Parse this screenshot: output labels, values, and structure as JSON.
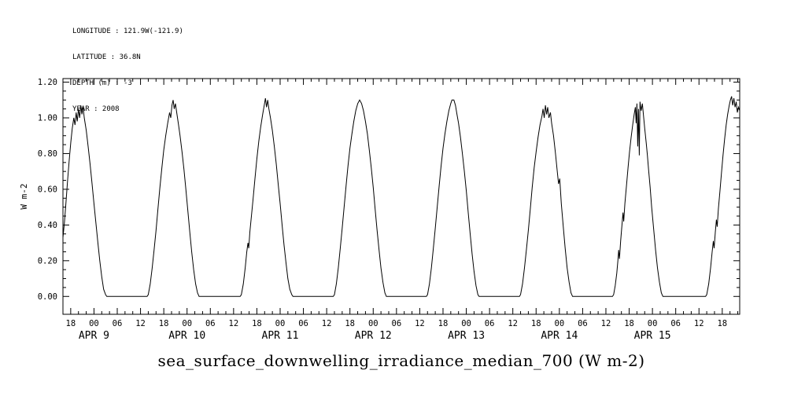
{
  "header": {
    "lines": [
      "LONGITUDE : 121.9W(-121.9)",
      "LATITUDE : 36.8N",
      "DEPTH (m) : -3",
      "YEAR : 2008"
    ]
  },
  "title": "sea_surface_downwelling_irradiance_median_700 (W m-2)",
  "colors": {
    "background": "#ffffff",
    "line": "#000000",
    "text": "#000000"
  },
  "chart_data": {
    "type": "line",
    "title": "sea_surface_downwelling_irradiance_median_700 (W m-2)",
    "ylabel": "W m-2",
    "grid": false,
    "legend": "none",
    "xlim": [
      16,
      190.5
    ],
    "ylim": [
      -0.1,
      1.22
    ],
    "x_minor_step": 2,
    "y_minor_step": 0.05,
    "y_ticks": [
      [
        0,
        "0.00"
      ],
      [
        0.2,
        "0.20"
      ],
      [
        0.4,
        "0.40"
      ],
      [
        0.6,
        "0.60"
      ],
      [
        0.8,
        "0.80"
      ],
      [
        1,
        "1.00"
      ],
      [
        1.2,
        "1.20"
      ]
    ],
    "x_ticks": [
      [
        18,
        "18"
      ],
      [
        24,
        "00"
      ],
      [
        30,
        "06"
      ],
      [
        36,
        "12"
      ],
      [
        42,
        "18"
      ],
      [
        48,
        "00"
      ],
      [
        54,
        "06"
      ],
      [
        60,
        "12"
      ],
      [
        66,
        "18"
      ],
      [
        72,
        "00"
      ],
      [
        78,
        "06"
      ],
      [
        84,
        "12"
      ],
      [
        90,
        "18"
      ],
      [
        96,
        "00"
      ],
      [
        102,
        "06"
      ],
      [
        108,
        "12"
      ],
      [
        114,
        "18"
      ],
      [
        120,
        "00"
      ],
      [
        126,
        "06"
      ],
      [
        132,
        "12"
      ],
      [
        138,
        "18"
      ],
      [
        144,
        "00"
      ],
      [
        150,
        "06"
      ],
      [
        156,
        "12"
      ],
      [
        162,
        "18"
      ],
      [
        168,
        "00"
      ],
      [
        174,
        "06"
      ],
      [
        180,
        "12"
      ],
      [
        186,
        "18"
      ]
    ],
    "date_labels": [
      [
        24,
        "APR 9"
      ],
      [
        48,
        "APR 10"
      ],
      [
        72,
        "APR 11"
      ],
      [
        96,
        "APR 12"
      ],
      [
        120,
        "APR 13"
      ],
      [
        144,
        "APR 14"
      ],
      [
        168,
        "APR 15"
      ]
    ],
    "points": [
      [
        16,
        0.33
      ],
      [
        16.4,
        0.42
      ],
      [
        16.8,
        0.53
      ],
      [
        17.2,
        0.65
      ],
      [
        17.6,
        0.76
      ],
      [
        18,
        0.86
      ],
      [
        18.4,
        0.94
      ],
      [
        18.8,
        1
      ],
      [
        19.1,
        0.96
      ],
      [
        19.4,
        1.03
      ],
      [
        19.7,
        0.98
      ],
      [
        20,
        1.05
      ],
      [
        20.3,
        1
      ],
      [
        20.6,
        1.07
      ],
      [
        20.9,
        1.02
      ],
      [
        21.2,
        1.06
      ],
      [
        21.5,
        1
      ],
      [
        22,
        0.93
      ],
      [
        22.5,
        0.84
      ],
      [
        23,
        0.74
      ],
      [
        23.5,
        0.63
      ],
      [
        24,
        0.52
      ],
      [
        24.5,
        0.41
      ],
      [
        25,
        0.3
      ],
      [
        25.5,
        0.2
      ],
      [
        26,
        0.11
      ],
      [
        26.5,
        0.04
      ],
      [
        27,
        0.01
      ],
      [
        27.3,
        0
      ],
      [
        37.7,
        0
      ],
      [
        38,
        0.01
      ],
      [
        38.5,
        0.07
      ],
      [
        39,
        0.16
      ],
      [
        39.5,
        0.26
      ],
      [
        40,
        0.37
      ],
      [
        40.5,
        0.49
      ],
      [
        41,
        0.61
      ],
      [
        41.5,
        0.72
      ],
      [
        42,
        0.82
      ],
      [
        42.5,
        0.9
      ],
      [
        43,
        0.97
      ],
      [
        43.5,
        1.03
      ],
      [
        43.8,
        1
      ],
      [
        44.1,
        1.07
      ],
      [
        44.4,
        1.1
      ],
      [
        44.7,
        1.05
      ],
      [
        45,
        1.08
      ],
      [
        45.4,
        1.02
      ],
      [
        45.8,
        0.96
      ],
      [
        46.2,
        0.9
      ],
      [
        46.7,
        0.81
      ],
      [
        47.2,
        0.71
      ],
      [
        47.7,
        0.6
      ],
      [
        48.2,
        0.48
      ],
      [
        48.7,
        0.36
      ],
      [
        49.2,
        0.25
      ],
      [
        49.7,
        0.15
      ],
      [
        50.2,
        0.07
      ],
      [
        50.7,
        0.02
      ],
      [
        51.1,
        0
      ],
      [
        61.7,
        0
      ],
      [
        62,
        0.01
      ],
      [
        62.5,
        0.07
      ],
      [
        63,
        0.16
      ],
      [
        63.4,
        0.25
      ],
      [
        63.7,
        0.3
      ],
      [
        63.9,
        0.27
      ],
      [
        64.2,
        0.36
      ],
      [
        64.6,
        0.45
      ],
      [
        65,
        0.54
      ],
      [
        65.5,
        0.66
      ],
      [
        66,
        0.77
      ],
      [
        66.5,
        0.87
      ],
      [
        67,
        0.95
      ],
      [
        67.5,
        1.02
      ],
      [
        67.9,
        1.07
      ],
      [
        68.2,
        1.11
      ],
      [
        68.5,
        1.06
      ],
      [
        68.8,
        1.1
      ],
      [
        69.1,
        1.05
      ],
      [
        69.5,
        1
      ],
      [
        70,
        0.93
      ],
      [
        70.5,
        0.84
      ],
      [
        71,
        0.74
      ],
      [
        71.5,
        0.63
      ],
      [
        72,
        0.52
      ],
      [
        72.5,
        0.4
      ],
      [
        73,
        0.29
      ],
      [
        73.5,
        0.19
      ],
      [
        74,
        0.1
      ],
      [
        74.5,
        0.04
      ],
      [
        75,
        0.01
      ],
      [
        75.3,
        0
      ],
      [
        85.7,
        0
      ],
      [
        86,
        0.01
      ],
      [
        86.5,
        0.07
      ],
      [
        87,
        0.16
      ],
      [
        87.5,
        0.27
      ],
      [
        88,
        0.38
      ],
      [
        88.5,
        0.5
      ],
      [
        89,
        0.62
      ],
      [
        89.5,
        0.73
      ],
      [
        90,
        0.83
      ],
      [
        90.5,
        0.91
      ],
      [
        91,
        0.98
      ],
      [
        91.5,
        1.04
      ],
      [
        92,
        1.08
      ],
      [
        92.5,
        1.1
      ],
      [
        93,
        1.08
      ],
      [
        93.5,
        1.04
      ],
      [
        94,
        0.98
      ],
      [
        94.5,
        0.91
      ],
      [
        95,
        0.82
      ],
      [
        95.5,
        0.72
      ],
      [
        96,
        0.61
      ],
      [
        96.5,
        0.49
      ],
      [
        97,
        0.37
      ],
      [
        97.5,
        0.26
      ],
      [
        98,
        0.16
      ],
      [
        98.5,
        0.08
      ],
      [
        99,
        0.02
      ],
      [
        99.4,
        0
      ],
      [
        109.7,
        0
      ],
      [
        110,
        0.01
      ],
      [
        110.5,
        0.07
      ],
      [
        111,
        0.16
      ],
      [
        111.5,
        0.27
      ],
      [
        112,
        0.38
      ],
      [
        112.5,
        0.5
      ],
      [
        113,
        0.62
      ],
      [
        113.5,
        0.73
      ],
      [
        114,
        0.83
      ],
      [
        114.5,
        0.91
      ],
      [
        115,
        0.98
      ],
      [
        115.5,
        1.04
      ],
      [
        116,
        1.08
      ],
      [
        116.3,
        1.1
      ],
      [
        116.8,
        1.1
      ],
      [
        117.2,
        1.07
      ],
      [
        117.6,
        1.02
      ],
      [
        118,
        0.97
      ],
      [
        118.5,
        0.89
      ],
      [
        119,
        0.8
      ],
      [
        119.5,
        0.7
      ],
      [
        120,
        0.59
      ],
      [
        120.5,
        0.47
      ],
      [
        121,
        0.35
      ],
      [
        121.5,
        0.24
      ],
      [
        122,
        0.14
      ],
      [
        122.5,
        0.06
      ],
      [
        123,
        0.01
      ],
      [
        123.3,
        0
      ],
      [
        133.7,
        0
      ],
      [
        134,
        0.01
      ],
      [
        134.5,
        0.07
      ],
      [
        135,
        0.16
      ],
      [
        135.5,
        0.26
      ],
      [
        136,
        0.37
      ],
      [
        136.5,
        0.49
      ],
      [
        137,
        0.61
      ],
      [
        137.5,
        0.72
      ],
      [
        138,
        0.81
      ],
      [
        138.5,
        0.89
      ],
      [
        139,
        0.96
      ],
      [
        139.5,
        1.01
      ],
      [
        139.8,
        1.05
      ],
      [
        140.1,
        1
      ],
      [
        140.4,
        1.07
      ],
      [
        140.7,
        1.02
      ],
      [
        141,
        1.06
      ],
      [
        141.3,
        1
      ],
      [
        141.7,
        1.03
      ],
      [
        142,
        0.97
      ],
      [
        142.5,
        0.9
      ],
      [
        143,
        0.8
      ],
      [
        143.5,
        0.69
      ],
      [
        143.8,
        0.63
      ],
      [
        144.1,
        0.66
      ],
      [
        144.5,
        0.52
      ],
      [
        145,
        0.39
      ],
      [
        145.5,
        0.27
      ],
      [
        146,
        0.16
      ],
      [
        146.5,
        0.08
      ],
      [
        147,
        0.02
      ],
      [
        147.4,
        0
      ],
      [
        157.7,
        0
      ],
      [
        158,
        0.01
      ],
      [
        158.4,
        0.06
      ],
      [
        158.8,
        0.13
      ],
      [
        159.1,
        0.2
      ],
      [
        159.3,
        0.26
      ],
      [
        159.5,
        0.21
      ],
      [
        159.8,
        0.31
      ],
      [
        160.1,
        0.39
      ],
      [
        160.4,
        0.47
      ],
      [
        160.6,
        0.42
      ],
      [
        160.9,
        0.52
      ],
      [
        161.3,
        0.62
      ],
      [
        161.7,
        0.72
      ],
      [
        162.1,
        0.81
      ],
      [
        162.5,
        0.89
      ],
      [
        162.9,
        0.96
      ],
      [
        163.3,
        1.02
      ],
      [
        163.6,
        1.06
      ],
      [
        163.8,
        0.97
      ],
      [
        164,
        1.08
      ],
      [
        164.2,
        0.84
      ],
      [
        164.4,
        1.05
      ],
      [
        164.6,
        0.79
      ],
      [
        164.8,
        1.09
      ],
      [
        165.1,
        1.04
      ],
      [
        165.4,
        1.08
      ],
      [
        165.7,
        1.01
      ],
      [
        166,
        0.94
      ],
      [
        166.4,
        0.86
      ],
      [
        166.7,
        0.79
      ],
      [
        167,
        0.71
      ],
      [
        167.4,
        0.61
      ],
      [
        167.8,
        0.5
      ],
      [
        168.3,
        0.38
      ],
      [
        168.8,
        0.26
      ],
      [
        169.3,
        0.16
      ],
      [
        169.8,
        0.08
      ],
      [
        170.3,
        0.02
      ],
      [
        170.7,
        0
      ],
      [
        181.7,
        0
      ],
      [
        182,
        0.01
      ],
      [
        182.5,
        0.07
      ],
      [
        183,
        0.16
      ],
      [
        183.4,
        0.25
      ],
      [
        183.7,
        0.31
      ],
      [
        183.9,
        0.27
      ],
      [
        184.2,
        0.36
      ],
      [
        184.5,
        0.43
      ],
      [
        184.7,
        0.39
      ],
      [
        185,
        0.49
      ],
      [
        185.4,
        0.59
      ],
      [
        185.8,
        0.69
      ],
      [
        186.2,
        0.79
      ],
      [
        186.6,
        0.88
      ],
      [
        187,
        0.96
      ],
      [
        187.4,
        1.02
      ],
      [
        187.8,
        1.07
      ],
      [
        188.1,
        1.1
      ],
      [
        188.4,
        1.12
      ],
      [
        188.7,
        1.07
      ],
      [
        189,
        1.11
      ],
      [
        189.3,
        1.06
      ],
      [
        189.6,
        1.09
      ],
      [
        189.9,
        1.03
      ],
      [
        190.2,
        1.06
      ],
      [
        190.5,
        1.04
      ]
    ]
  }
}
